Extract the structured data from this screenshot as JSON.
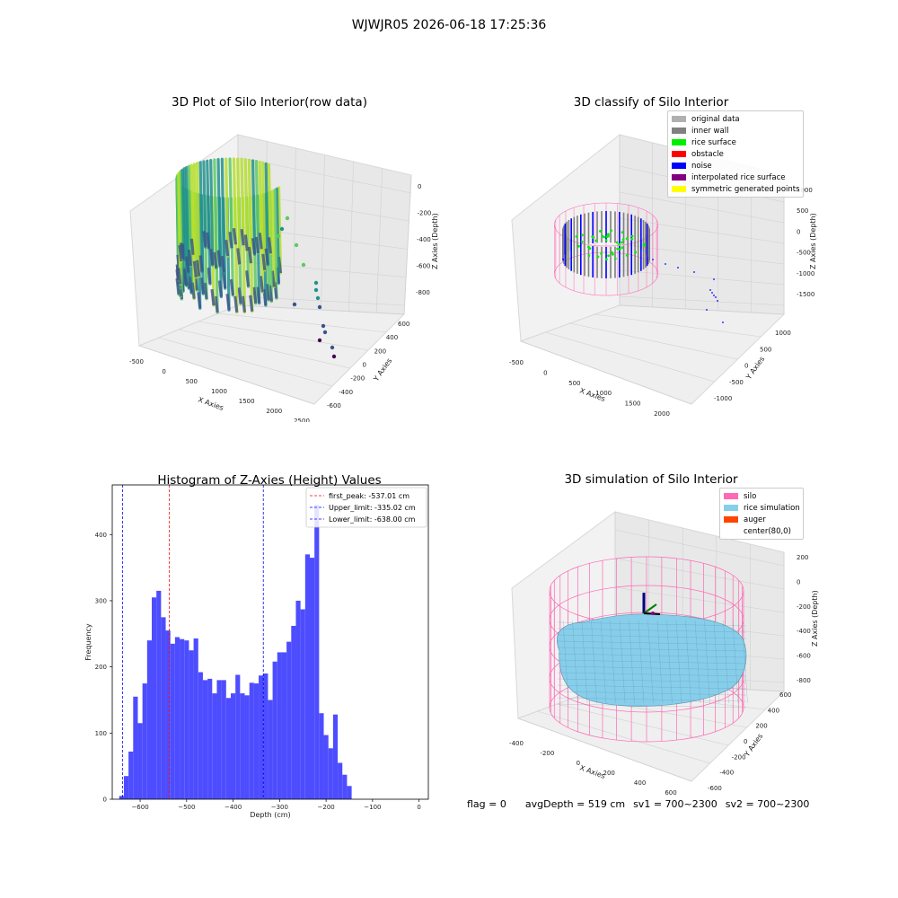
{
  "suptitle": "WJWJR05 2026-06-18 17:25:36",
  "footer": {
    "flag": "flag = 0",
    "avg_depth": "avgDepth = 519 cm",
    "sv1": "sv1 = 700~2300",
    "sv2": "sv2 = 700~2300"
  },
  "colors": {
    "original_data": "#b0b0b0",
    "inner_wall": "#808080",
    "rice_surface": "#00ee00",
    "obstacle": "#ff0000",
    "noise": "#0000ff",
    "interpolated_rice_surface": "#800080",
    "symmetric_generated_points": "#ffff00",
    "silo": "#ff69b4",
    "rice_simulation": "#87ceeb",
    "auger": "#ff4500",
    "histogram_bar": "#4d4dff",
    "first_peak_line": "#ff0000",
    "limit_line": "#0000ff"
  },
  "panels": {
    "raw": {
      "title": "3D Plot of Silo Interior(row data)",
      "x_label": "X Axies",
      "y_label": "Y Axies",
      "z_label": "Z Axies (Depth)",
      "x_ticks": [
        "-500",
        "0",
        "500",
        "1000",
        "1500",
        "2000",
        "2500"
      ],
      "y_ticks": [
        "600",
        "400",
        "200",
        "0",
        "-200",
        "-400",
        "-600"
      ],
      "z_ticks": [
        "0",
        "-200",
        "-400",
        "-600",
        "-800"
      ],
      "colormap": "viridis"
    },
    "classify": {
      "title": "3D classify of Silo Interior",
      "x_label": "X Axies",
      "y_label": "Y Axies",
      "z_label": "Z Axies (Depth)",
      "x_ticks": [
        "-500",
        "0",
        "500",
        "1000",
        "1500",
        "2000"
      ],
      "y_ticks": [
        "1000",
        "500",
        "0",
        "-500",
        "-1000"
      ],
      "z_ticks": [
        "1000",
        "500",
        "0",
        "-500",
        "-1000",
        "-1500"
      ],
      "legend": [
        {
          "label": "original data",
          "color": "#b0b0b0"
        },
        {
          "label": "inner wall",
          "color": "#808080"
        },
        {
          "label": "rice surface",
          "color": "#00ee00"
        },
        {
          "label": "obstacle",
          "color": "#ff0000"
        },
        {
          "label": "noise",
          "color": "#0000ff"
        },
        {
          "label": "interpolated rice surface",
          "color": "#800080"
        },
        {
          "label": "symmetric generated points",
          "color": "#ffff00"
        }
      ]
    },
    "simulation": {
      "title": "3D simulation of Silo Interior",
      "x_label": "X Axies",
      "y_label": "Y Axies",
      "z_label": "Z Axies (Depth)",
      "x_ticks": [
        "-400",
        "-200",
        "0",
        "200",
        "400",
        "600"
      ],
      "y_ticks": [
        "600",
        "400",
        "200",
        "0",
        "-200",
        "-400",
        "-600"
      ],
      "z_ticks": [
        "200",
        "0",
        "-200",
        "-400",
        "-600",
        "-800"
      ],
      "legend": [
        {
          "label": "silo",
          "color": "#ff69b4"
        },
        {
          "label": "rice simulation",
          "color": "#87ceeb"
        },
        {
          "label": "auger",
          "color": "#ff4500"
        },
        {
          "label": "center(80,0)",
          "color": ""
        }
      ]
    }
  },
  "chart_data": [
    {
      "type": "bar",
      "title": "Histogram of Z-Axies (Height) Values",
      "xlabel": "Depth (cm)",
      "ylabel": "Frequency",
      "xlim": [
        -660,
        20
      ],
      "ylim": [
        0,
        475
      ],
      "bin_start": -645,
      "bin_width": 10,
      "x_ticks": [
        -600,
        -500,
        -400,
        -300,
        -200,
        -100,
        0
      ],
      "y_ticks": [
        0,
        100,
        200,
        300,
        400
      ],
      "values": [
        5,
        35,
        72,
        155,
        115,
        175,
        240,
        305,
        315,
        275,
        255,
        235,
        245,
        242,
        240,
        225,
        243,
        192,
        180,
        182,
        160,
        180,
        180,
        153,
        160,
        188,
        160,
        157,
        176,
        175,
        187,
        190,
        150,
        208,
        222,
        222,
        238,
        262,
        300,
        287,
        370,
        365,
        445,
        130,
        97,
        77,
        128,
        55,
        37,
        20
      ],
      "vlines": [
        {
          "x": -537.01,
          "label": "first_peak: -537.01 cm",
          "color": "#ff0000"
        },
        {
          "x": -335.02,
          "label": "Upper_limit: -335.02 cm",
          "color": "#0000ff"
        },
        {
          "x": -638.0,
          "label": "Lower_limit: -638.00 cm",
          "color": "#0000ff"
        }
      ],
      "legend_position": "top-right",
      "grid": false
    }
  ]
}
